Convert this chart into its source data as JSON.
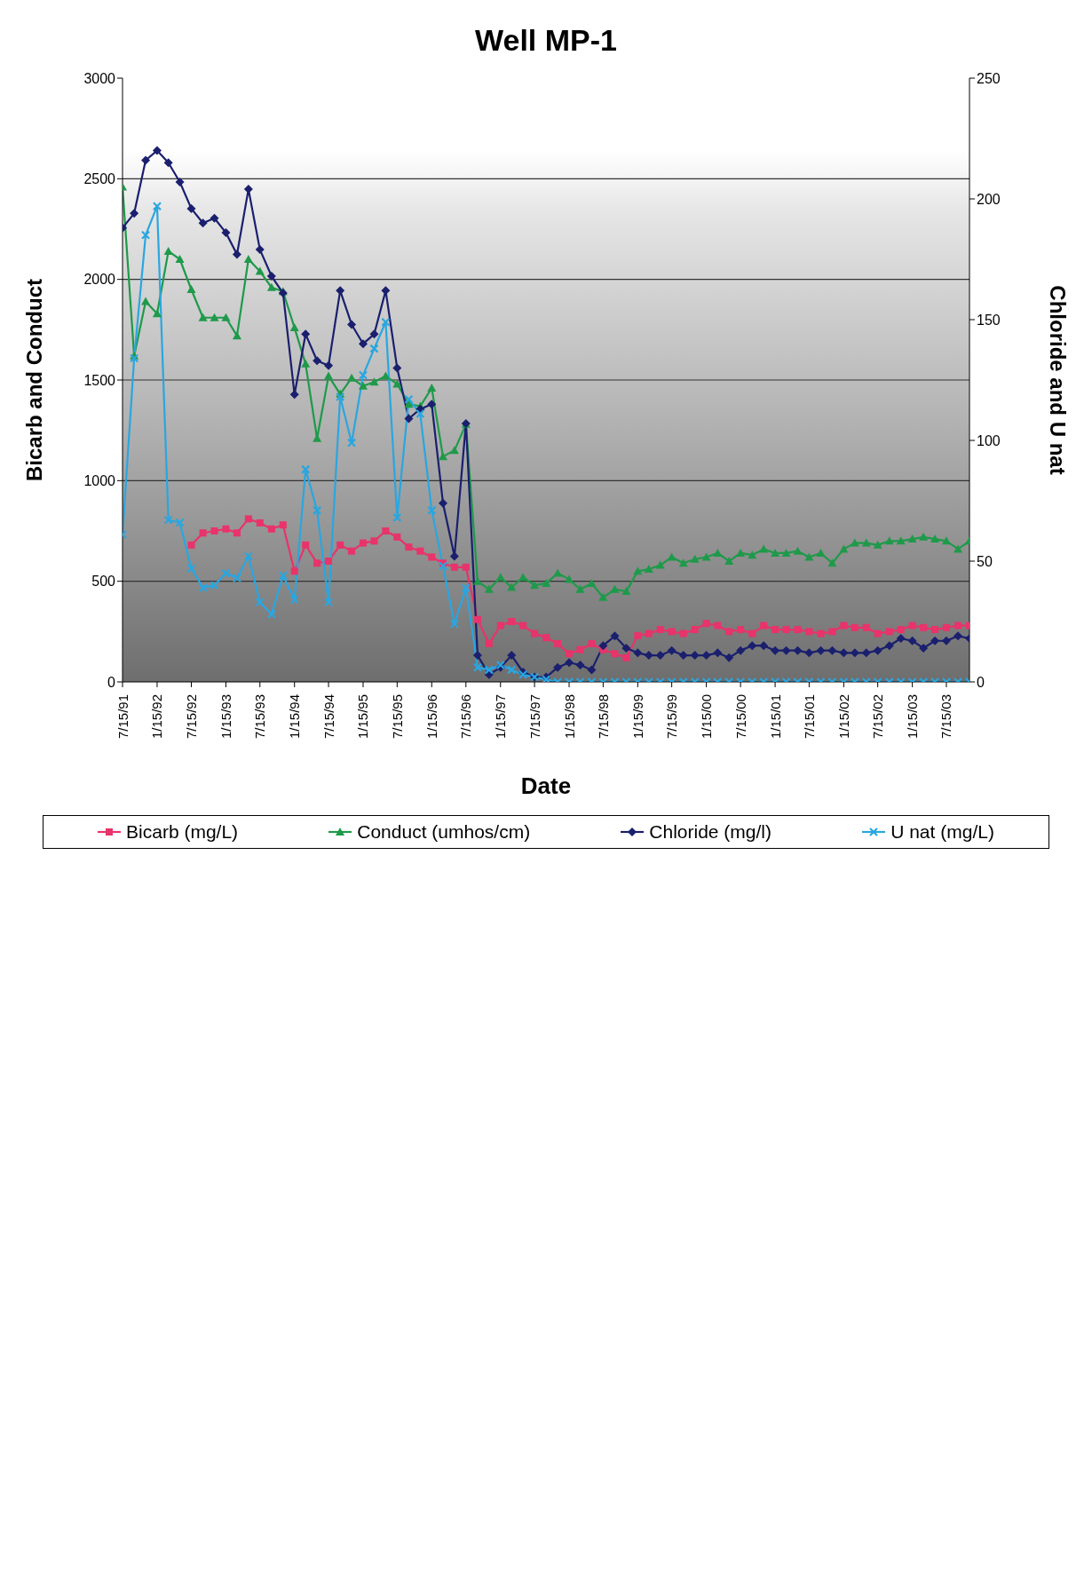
{
  "chart_data": {
    "type": "line",
    "title": "Well MP-1",
    "xlabel": "Date",
    "ylabel": "Bicarb and Conduct",
    "y2label": "Chloride and U nat",
    "x": [
      "1991-07-15",
      "1991-09-15",
      "1991-11-15",
      "1992-01-15",
      "1992-03-15",
      "1992-05-15",
      "1992-07-15",
      "1992-09-15",
      "1992-11-15",
      "1993-01-15",
      "1993-03-15",
      "1993-05-15",
      "1993-07-15",
      "1993-09-15",
      "1993-11-15",
      "1994-01-15",
      "1994-03-15",
      "1994-05-15",
      "1994-07-15",
      "1994-09-15",
      "1994-11-15",
      "1995-01-15",
      "1995-03-15",
      "1995-05-15",
      "1995-07-15",
      "1995-09-15",
      "1995-11-15",
      "1996-01-15",
      "1996-03-15",
      "1996-05-15",
      "1996-07-15",
      "1996-09-15",
      "1996-11-15",
      "1997-01-15",
      "1997-03-15",
      "1997-05-15",
      "1997-07-15",
      "1997-09-15",
      "1997-11-15",
      "1998-01-15",
      "1998-03-15",
      "1998-05-15",
      "1998-07-15",
      "1998-09-15",
      "1998-11-15",
      "1999-01-15",
      "1999-03-15",
      "1999-05-15",
      "1999-07-15",
      "1999-09-15",
      "1999-11-15",
      "2000-01-15",
      "2000-03-15",
      "2000-05-15",
      "2000-07-15",
      "2000-09-15",
      "2000-11-15",
      "2001-01-15",
      "2001-03-15",
      "2001-05-15",
      "2001-07-15",
      "2001-09-15",
      "2001-11-15",
      "2002-01-15",
      "2002-03-15",
      "2002-05-15",
      "2002-07-15",
      "2002-09-15",
      "2002-11-15",
      "2003-01-15",
      "2003-03-15",
      "2003-05-15",
      "2003-07-15",
      "2003-09-15",
      "2003-11-15"
    ],
    "series": [
      {
        "name": "Bicarb (mg/L)",
        "color": "#e8336b",
        "marker": "square",
        "values": [
          null,
          null,
          null,
          null,
          null,
          null,
          680,
          740,
          750,
          760,
          740,
          810,
          790,
          760,
          780,
          550,
          680,
          590,
          600,
          680,
          650,
          690,
          700,
          750,
          720,
          670,
          650,
          620,
          590,
          570,
          570,
          310,
          190,
          280,
          300,
          280,
          240,
          220,
          190,
          140,
          160,
          190,
          160,
          140,
          120,
          230,
          240,
          260,
          250,
          240,
          260,
          290,
          280,
          250,
          260,
          240,
          280,
          260,
          260,
          260,
          250,
          240,
          250,
          280,
          270,
          270,
          240,
          250,
          260,
          280,
          270,
          260,
          270,
          280,
          280
        ]
      },
      {
        "name": "Conduct (umhos/cm)",
        "color": "#1e9a4a",
        "marker": "triangle",
        "values": [
          2460,
          1620,
          1890,
          1830,
          2140,
          2100,
          1950,
          1810,
          1810,
          1810,
          1720,
          2100,
          2040,
          1960,
          1940,
          1760,
          1580,
          1210,
          1520,
          1430,
          1510,
          1470,
          1490,
          1520,
          1480,
          1380,
          1370,
          1460,
          1120,
          1150,
          1280,
          500,
          460,
          520,
          470,
          520,
          480,
          490,
          540,
          510,
          460,
          490,
          420,
          460,
          450,
          550,
          560,
          580,
          620,
          590,
          610,
          620,
          640,
          600,
          640,
          630,
          660,
          640,
          640,
          650,
          620,
          640,
          590,
          660,
          690,
          690,
          680,
          700,
          700,
          710,
          720,
          710,
          700,
          660,
          700
        ]
      },
      {
        "name": "Chloride (mg/l)",
        "color": "#1a1f6e",
        "marker": "diamond",
        "axis": "y2",
        "values": [
          188,
          194,
          216,
          220,
          215,
          207,
          196,
          190,
          192,
          186,
          177,
          204,
          179,
          168,
          161,
          119,
          144,
          133,
          131,
          162,
          148,
          140,
          144,
          162,
          130,
          109,
          113,
          115,
          74,
          52,
          107,
          11,
          3,
          6,
          11,
          4,
          2,
          2,
          6,
          8,
          7,
          5,
          15,
          19,
          14,
          12,
          11,
          11,
          13,
          11,
          11,
          11,
          12,
          10,
          13,
          15,
          15,
          13,
          13,
          13,
          12,
          13,
          13,
          12,
          12,
          12,
          13,
          15,
          18,
          17,
          14,
          17,
          17,
          19,
          18
        ]
      },
      {
        "name": "U nat (mg/L)",
        "color": "#2aa6e0",
        "marker": "cross",
        "axis": "y2",
        "values": [
          61,
          134,
          185,
          197,
          67,
          66,
          47,
          39,
          40,
          45,
          43,
          52,
          33,
          28,
          44,
          34,
          88,
          71,
          33,
          118,
          99,
          127,
          138,
          149,
          68,
          117,
          111,
          71,
          48,
          24,
          39,
          6,
          5,
          7,
          5,
          3,
          2,
          1,
          0,
          0,
          0,
          0,
          0,
          0,
          0,
          0,
          0,
          0,
          0,
          0,
          0,
          0,
          0,
          0,
          0,
          0,
          0,
          0,
          0,
          0,
          0,
          0,
          0,
          0,
          0,
          0,
          0,
          0,
          0,
          0,
          0,
          0,
          0,
          0,
          0
        ]
      }
    ],
    "xlim": [
      "1991-07-15",
      "2003-11-15"
    ],
    "xticks": [
      {
        "value": "1991-07-15",
        "label": "7/15/91"
      },
      {
        "value": "1992-01-15",
        "label": "1/15/92"
      },
      {
        "value": "1992-07-15",
        "label": "7/15/92"
      },
      {
        "value": "1993-01-15",
        "label": "1/15/93"
      },
      {
        "value": "1993-07-15",
        "label": "7/15/93"
      },
      {
        "value": "1994-01-15",
        "label": "1/15/94"
      },
      {
        "value": "1994-07-15",
        "label": "7/15/94"
      },
      {
        "value": "1995-01-15",
        "label": "1/15/95"
      },
      {
        "value": "1995-07-15",
        "label": "7/15/95"
      },
      {
        "value": "1996-01-15",
        "label": "1/15/96"
      },
      {
        "value": "1996-07-15",
        "label": "7/15/96"
      },
      {
        "value": "1997-01-15",
        "label": "1/15/97"
      },
      {
        "value": "1997-07-15",
        "label": "7/15/97"
      },
      {
        "value": "1998-01-15",
        "label": "1/15/98"
      },
      {
        "value": "1998-07-15",
        "label": "7/15/98"
      },
      {
        "value": "1999-01-15",
        "label": "1/15/99"
      },
      {
        "value": "1999-07-15",
        "label": "7/15/99"
      },
      {
        "value": "2000-01-15",
        "label": "1/15/00"
      },
      {
        "value": "2000-07-15",
        "label": "7/15/00"
      },
      {
        "value": "2001-01-15",
        "label": "1/15/01"
      },
      {
        "value": "2001-07-15",
        "label": "7/15/01"
      },
      {
        "value": "2002-01-15",
        "label": "1/15/02"
      },
      {
        "value": "2002-07-15",
        "label": "7/15/02"
      },
      {
        "value": "2003-01-15",
        "label": "1/15/03"
      },
      {
        "value": "2003-07-15",
        "label": "7/15/03"
      }
    ],
    "ylim": [
      0,
      3000
    ],
    "yticks": [
      0,
      500,
      1000,
      1500,
      2000,
      2500,
      3000
    ],
    "y2lim": [
      0,
      250
    ],
    "y2ticks": [
      0,
      50,
      100,
      150,
      200,
      250
    ],
    "grid": "y",
    "legend": "bottom",
    "line_style": "solid"
  }
}
